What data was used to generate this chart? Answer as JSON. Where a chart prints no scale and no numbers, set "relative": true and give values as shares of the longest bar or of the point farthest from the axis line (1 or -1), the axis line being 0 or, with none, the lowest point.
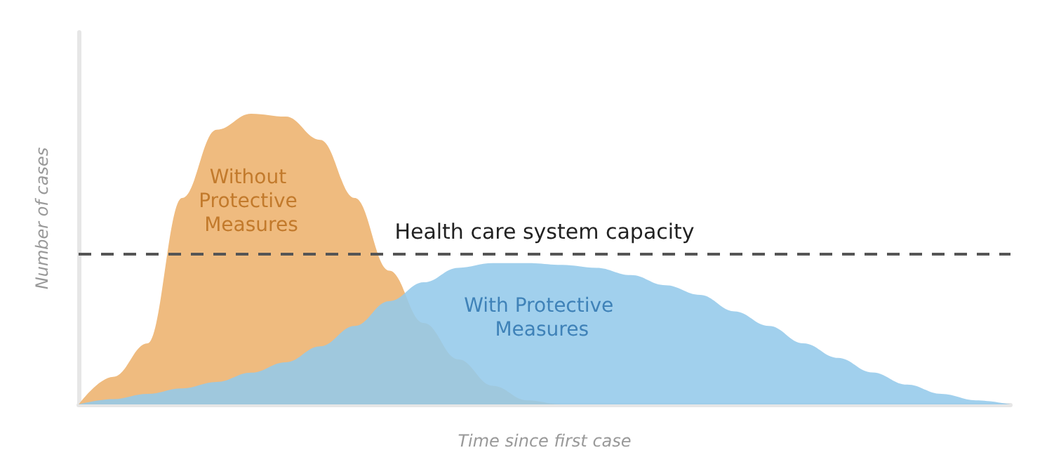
{
  "chart_data": {
    "type": "area",
    "relative": true,
    "xlabel": "Time since first case",
    "ylabel": "Number of cases",
    "marker": "none",
    "categories": [
      null,
      null,
      null,
      null,
      null,
      null,
      null,
      null,
      null,
      null,
      null,
      null,
      null,
      null,
      null,
      null,
      null,
      null,
      null,
      null,
      null,
      null,
      null,
      null,
      null,
      null,
      null,
      null
    ],
    "series": [
      {
        "name": "Without Protective Measures",
        "color": "#efbb7f",
        "values": [
          0,
          0.095,
          0.21,
          0.71,
          0.945,
          1,
          0.99,
          0.91,
          0.71,
          0.46,
          0.28,
          0.155,
          0.064,
          0.014,
          0,
          0,
          0,
          0,
          0,
          0,
          0,
          0,
          0,
          0,
          0,
          0,
          0,
          0
        ]
      },
      {
        "name": "With Protective Measures",
        "color": "#94c9ea",
        "values": [
          0,
          0.018,
          0.036,
          0.055,
          0.077,
          0.109,
          0.145,
          0.2,
          0.27,
          0.355,
          0.42,
          0.47,
          0.486,
          0.486,
          0.48,
          0.47,
          0.445,
          0.41,
          0.377,
          0.32,
          0.27,
          0.21,
          0.16,
          0.11,
          0.068,
          0.036,
          0.014,
          0
        ]
      }
    ],
    "ref_lines": [
      {
        "axis": "y",
        "value": 0.523,
        "label": "Health care system capacity",
        "color": "#555555",
        "line_style": "dashed"
      }
    ]
  }
}
